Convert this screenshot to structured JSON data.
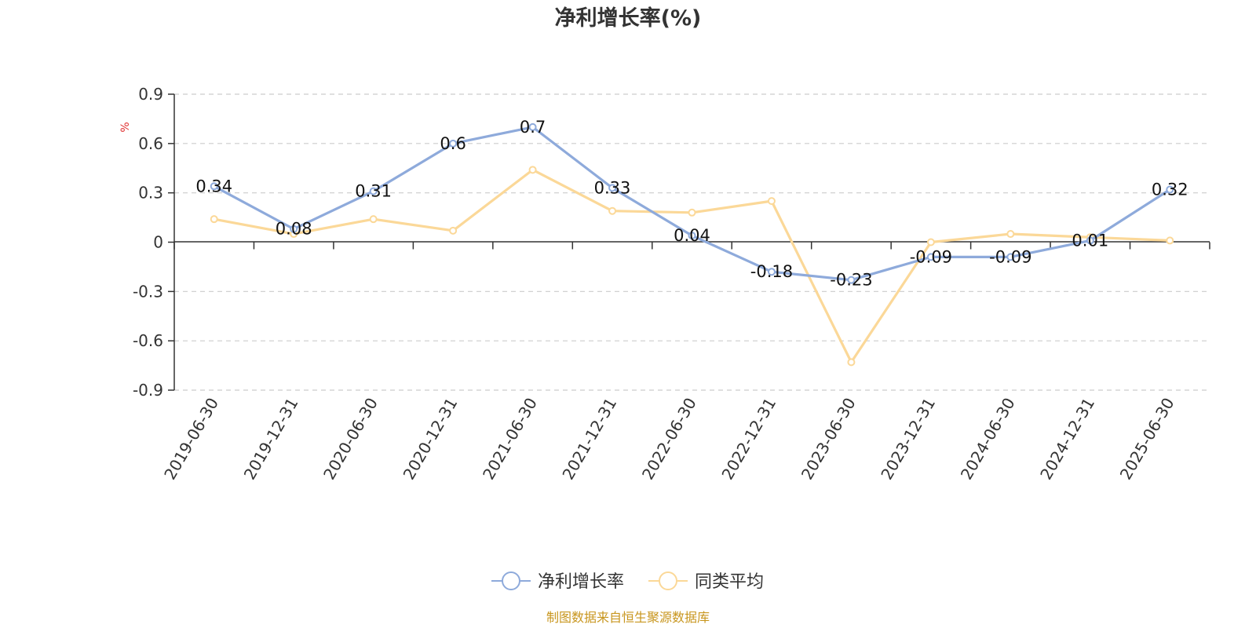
{
  "chart_data": {
    "type": "line",
    "title": "净利增长率(%)",
    "ylabel": "%",
    "ylim": [
      -0.9,
      0.9
    ],
    "yticks": [
      0.9,
      0.6,
      0.3,
      0,
      -0.3,
      -0.6,
      -0.9
    ],
    "ytick_labels": [
      "0.9",
      "0.6",
      "0.3",
      "0",
      "-0.3",
      "-0.6",
      "-0.9"
    ],
    "grid": true,
    "legend_position": "bottom-center",
    "categories": [
      "2019-06-30",
      "2019-12-31",
      "2020-06-30",
      "2020-12-31",
      "2021-06-30",
      "2021-12-31",
      "2022-06-30",
      "2022-12-31",
      "2023-06-30",
      "2023-12-31",
      "2024-06-30",
      "2024-12-31",
      "2025-06-30"
    ],
    "series": [
      {
        "name": "净利增长率",
        "color": "#8eaadb",
        "values": [
          0.34,
          0.08,
          0.31,
          0.6,
          0.7,
          0.33,
          0.04,
          -0.18,
          -0.23,
          -0.09,
          -0.09,
          0.01,
          0.32
        ],
        "labels": [
          "0.34",
          "0.08",
          "0.31",
          "0.6",
          "0.7",
          "0.33",
          "0.04",
          "-0.18",
          "-0.23",
          "-0.09",
          "-0.09",
          "0.01",
          "0.32"
        ]
      },
      {
        "name": "同类平均",
        "color": "#fbd898",
        "values": [
          0.14,
          0.05,
          0.14,
          0.07,
          0.44,
          0.19,
          0.18,
          0.25,
          -0.73,
          0.0,
          0.05,
          0.03,
          0.01
        ]
      }
    ],
    "source": "制图数据来自恒生聚源数据库"
  }
}
